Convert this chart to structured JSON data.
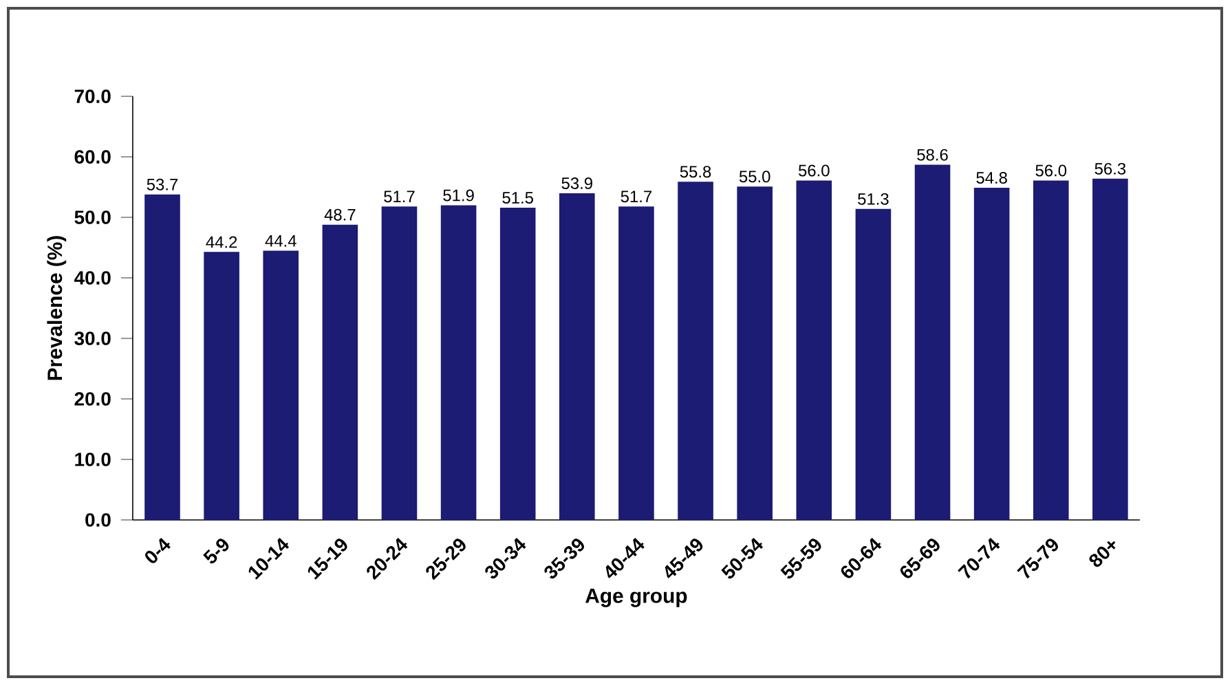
{
  "chart_data": {
    "type": "bar",
    "xlabel": "Age group",
    "ylabel": "Prevalence (%)",
    "categories": [
      "0-4",
      "5-9",
      "10-14",
      "15-19",
      "20-24",
      "25-29",
      "30-34",
      "35-39",
      "40-44",
      "45-49",
      "50-54",
      "55-59",
      "60-64",
      "65-69",
      "70-74",
      "75-79",
      "80+"
    ],
    "values": [
      53.7,
      44.2,
      44.4,
      48.7,
      51.7,
      51.9,
      51.5,
      53.9,
      51.7,
      55.8,
      55.0,
      56.0,
      51.3,
      58.6,
      54.8,
      56.0,
      56.3
    ],
    "value_labels": [
      "53.7",
      "44.2",
      "44.4",
      "48.7",
      "51.7",
      "51.9",
      "51.5",
      "53.9",
      "51.7",
      "55.8",
      "55.0",
      "56.0",
      "51.3",
      "58.6",
      "54.8",
      "56.0",
      "56.3"
    ],
    "color": "#1c1c74",
    "ylim": [
      0,
      70
    ],
    "yticks": [
      {
        "value": 0,
        "label": "0.0"
      },
      {
        "value": 10,
        "label": "10.0"
      },
      {
        "value": 20,
        "label": "20.0"
      },
      {
        "value": 30,
        "label": "30.0"
      },
      {
        "value": 40,
        "label": "40.0"
      },
      {
        "value": 50,
        "label": "50.0"
      },
      {
        "value": 60,
        "label": "60.0"
      },
      {
        "value": 70,
        "label": "70.0"
      }
    ]
  }
}
